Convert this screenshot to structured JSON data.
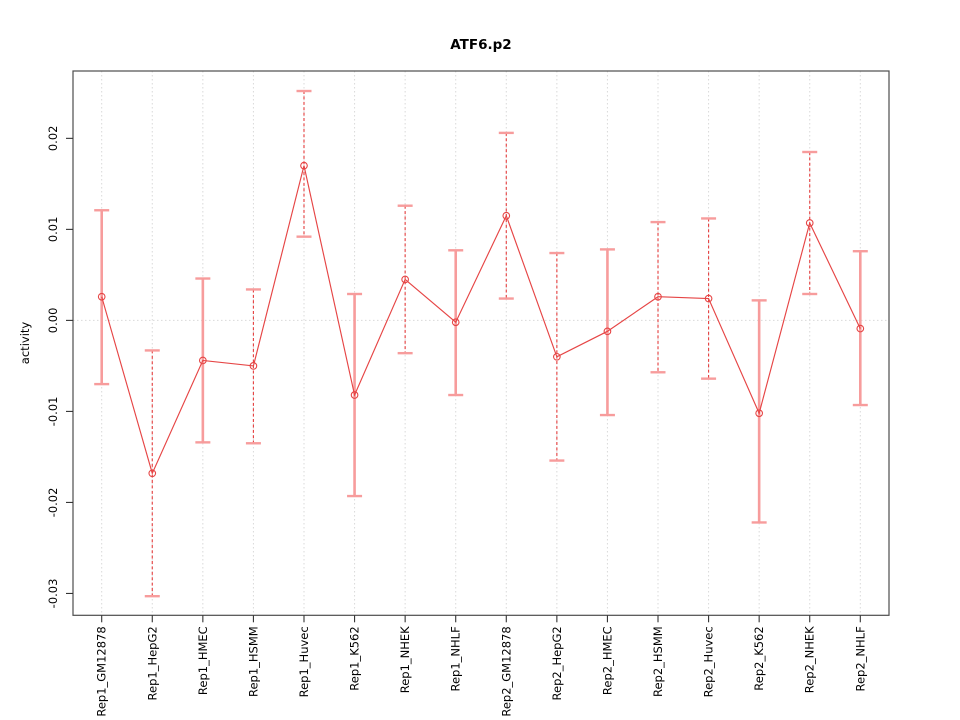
{
  "chart_data": {
    "type": "line",
    "title": "ATF6.p2",
    "xlabel": "",
    "ylabel": "activity",
    "categories": [
      "Rep1_GM12878",
      "Rep1_HepG2",
      "Rep1_HMEC",
      "Rep1_HSMM",
      "Rep1_Huvec",
      "Rep1_K562",
      "Rep1_NHEK",
      "Rep1_NHLF",
      "Rep2_GM12878",
      "Rep2_HepG2",
      "Rep2_HMEC",
      "Rep2_HSMM",
      "Rep2_Huvec",
      "Rep2_K562",
      "Rep2_NHEK",
      "Rep2_NHLF"
    ],
    "series": [
      {
        "name": "activity",
        "values": [
          0.0026,
          -0.0168,
          -0.0044,
          -0.005,
          0.017,
          -0.0082,
          0.0045,
          -0.0002,
          0.0115,
          -0.004,
          -0.0012,
          0.0026,
          0.0024,
          -0.0102,
          0.0107,
          -0.0009
        ],
        "upper": [
          0.0121,
          -0.0033,
          0.0046,
          0.0034,
          0.0252,
          0.0029,
          0.0126,
          0.0077,
          0.0206,
          0.0074,
          0.0078,
          0.0108,
          0.0112,
          0.0022,
          0.0185,
          0.0076
        ],
        "lower": [
          -0.007,
          -0.0303,
          -0.0134,
          -0.0135,
          0.0092,
          -0.0193,
          -0.0036,
          -0.0082,
          0.0024,
          -0.0154,
          -0.0104,
          -0.0057,
          -0.0064,
          -0.0222,
          0.0029,
          -0.0093
        ],
        "error_bar_styles": [
          "solid",
          "dashed",
          "solid",
          "dashed",
          "dashed",
          "solid",
          "dashed",
          "solid",
          "dashed",
          "dashed",
          "solid",
          "dashed",
          "dashed",
          "solid",
          "dashed",
          "solid"
        ]
      }
    ],
    "ylim": [
      -0.0324,
      0.0274
    ],
    "yticks": [
      0.02,
      0.01,
      0.0,
      -0.01,
      -0.02,
      -0.03
    ],
    "ytick_labels": [
      "0.02",
      "0.01",
      "0.00",
      "-0.01",
      "-0.02",
      "-0.03"
    ],
    "grid": "vertical dotted gridline at each category; dotted horizontal reference line at y=0",
    "legend": "none",
    "marker": "open-circle",
    "colors": {
      "line": "#e64545",
      "marker": "#e64545",
      "error_bar": "#f79c9c",
      "grid": "#d9d9d9",
      "zero_line": "#d9d9d9",
      "box": "#4d4d4d",
      "tick": "#333333",
      "text": "#000000",
      "background": "#ffffff"
    }
  }
}
